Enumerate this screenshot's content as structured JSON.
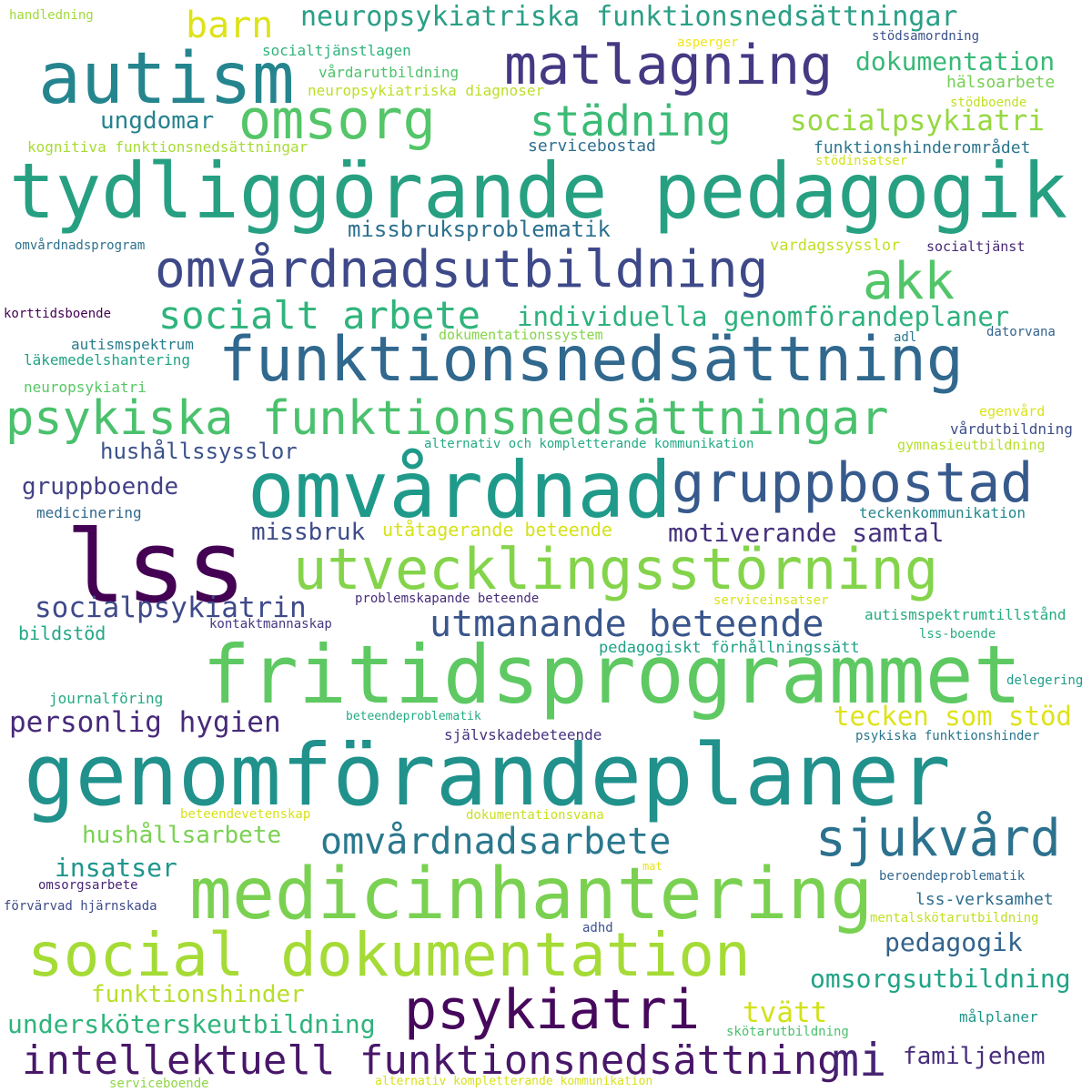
{
  "words": [
    {
      "text": "tydliggörande pedagogik",
      "color": "#27a082"
    },
    {
      "text": "genomförandeplaner",
      "color": "#21918c"
    },
    {
      "text": "fritidsprogrammet",
      "color": "#5ec962"
    },
    {
      "text": "omvårdnad",
      "color": "#1f9a8a"
    },
    {
      "text": "lss",
      "color": "#440154"
    },
    {
      "text": "medicinhantering",
      "color": "#7ad151"
    },
    {
      "text": "social dokumentation",
      "color": "#a5db36"
    },
    {
      "text": "autism",
      "color": "#25858e"
    },
    {
      "text": "funktionsnedsättning",
      "color": "#31688e"
    },
    {
      "text": "omvårdnadsutbildning",
      "color": "#3e4989"
    },
    {
      "text": "utvecklingsstörning",
      "color": "#84d44b"
    },
    {
      "text": "matlagning",
      "color": "#443983"
    },
    {
      "text": "psykiska funktionsnedsättningar",
      "color": "#4ac16d"
    },
    {
      "text": "gruppbostad",
      "color": "#375a8c"
    },
    {
      "text": "psykiatri",
      "color": "#46085c"
    },
    {
      "text": "intellektuell funktionsnedsättning",
      "color": "#481769"
    },
    {
      "text": "omsorg",
      "color": "#54c568"
    },
    {
      "text": "städning",
      "color": "#3bbb75"
    },
    {
      "text": "akk",
      "color": "#52c569"
    },
    {
      "text": "sjukvård",
      "color": "#2c728e"
    },
    {
      "text": "utmanande beteende",
      "color": "#39568c"
    },
    {
      "text": "socialt arbete",
      "color": "#2fb47c"
    },
    {
      "text": "mi",
      "color": "#482475"
    },
    {
      "text": "omvårdnadsarbete",
      "color": "#2a788e"
    },
    {
      "text": "barn",
      "color": "#dde318"
    },
    {
      "text": "neuropsykiatriska funktionsnedsättningar",
      "color": "#2a9f86"
    },
    {
      "text": "dokumentation",
      "color": "#38b977"
    },
    {
      "text": "socialpsykiatri",
      "color": "#95d840"
    },
    {
      "text": "individuella genomförandeplaner",
      "color": "#2db27d"
    },
    {
      "text": "socialpsykiatrin",
      "color": "#3f4a8a"
    },
    {
      "text": "personlig hygien",
      "color": "#472a7a"
    },
    {
      "text": "tecken som stöd",
      "color": "#dde318"
    },
    {
      "text": "motiverande samtal",
      "color": "#46327e"
    },
    {
      "text": "insatser",
      "color": "#1f968b"
    },
    {
      "text": "hushållsarbete",
      "color": "#7ad151"
    },
    {
      "text": "funktionshinder",
      "color": "#b8de29"
    },
    {
      "text": "undersköterskeutbildning",
      "color": "#2fb47c"
    },
    {
      "text": "tvätt",
      "color": "#d2e21b"
    },
    {
      "text": "pedagogik",
      "color": "#33638d"
    },
    {
      "text": "omsorgsutbildning",
      "color": "#20a386"
    },
    {
      "text": "familjehem",
      "color": "#472d7b"
    },
    {
      "text": "ungdomar",
      "color": "#26828e"
    },
    {
      "text": "missbruksproblematik",
      "color": "#2d708e"
    },
    {
      "text": "hushållssysslor",
      "color": "#3b528b"
    },
    {
      "text": "gruppboende",
      "color": "#424086"
    },
    {
      "text": "missbruk",
      "color": "#3e4c8a"
    },
    {
      "text": "utåtagerande beteende",
      "color": "#d5e21a"
    },
    {
      "text": "funktionshinderområdet",
      "color": "#2b758e"
    },
    {
      "text": "hälsoarbete",
      "color": "#75d054"
    },
    {
      "text": "servicebostad",
      "color": "#2e6e8e"
    },
    {
      "text": "vardagssysslor",
      "color": "#c2df23"
    },
    {
      "text": "socialtjänst",
      "color": "#482878"
    },
    {
      "text": "handledning",
      "color": "#a0da39"
    },
    {
      "text": "socialtjänstlagen",
      "color": "#2fb47c"
    },
    {
      "text": "vårdarutbildning",
      "color": "#4ec36b"
    },
    {
      "text": "neuropsykiatriska diagnoser",
      "color": "#bddf26"
    },
    {
      "text": "kognitiva funktionsnedsättningar",
      "color": "#a8db34"
    },
    {
      "text": "asperger",
      "color": "#f1e51d"
    },
    {
      "text": "stödsamordning",
      "color": "#3b518b"
    },
    {
      "text": "stödboende",
      "color": "#c2df23"
    },
    {
      "text": "stödinsatser",
      "color": "#d2e21b"
    },
    {
      "text": "omvårdnadsprogram",
      "color": "#2d718e"
    },
    {
      "text": "korttidsboende",
      "color": "#440154"
    },
    {
      "text": "autismspektrum",
      "color": "#287c8e"
    },
    {
      "text": "läkemedelshantering",
      "color": "#20a386"
    },
    {
      "text": "neuropsykiatri",
      "color": "#58c765"
    },
    {
      "text": "dokumentationssystem",
      "color": "#86d549"
    },
    {
      "text": "adl",
      "color": "#2a768e"
    },
    {
      "text": "datorvana",
      "color": "#33638d"
    },
    {
      "text": "egenvård",
      "color": "#dae319"
    },
    {
      "text": "vårdutbildning",
      "color": "#3d4d8a"
    },
    {
      "text": "alternativ och kompletterande kommunikation",
      "color": "#24aa83"
    },
    {
      "text": "gymnasieutbildning",
      "color": "#b5de2b"
    },
    {
      "text": "medicinering",
      "color": "#31688e"
    },
    {
      "text": "teckenkommunikation",
      "color": "#23888e"
    },
    {
      "text": "problemskapande beteende",
      "color": "#472c7a"
    },
    {
      "text": "serviceinsatser",
      "color": "#d8e219"
    },
    {
      "text": "autismspektrumtillstånd",
      "color": "#25ab82"
    },
    {
      "text": "bildstöd",
      "color": "#22a785"
    },
    {
      "text": "kontaktmannaskap",
      "color": "#453781"
    },
    {
      "text": "lss-boende",
      "color": "#29af7f"
    },
    {
      "text": "pedagogiskt förhållningssätt",
      "color": "#1fa188"
    },
    {
      "text": "delegering",
      "color": "#1f9e89"
    },
    {
      "text": "journalföring",
      "color": "#23a983"
    },
    {
      "text": "beteendeproblematik",
      "color": "#24aa83"
    },
    {
      "text": "självskadebeteende",
      "color": "#46327e"
    },
    {
      "text": "psykiska funktionshinder",
      "color": "#2a768e"
    },
    {
      "text": "beteendevetenskap",
      "color": "#d8e219"
    },
    {
      "text": "dokumentationsvana",
      "color": "#c8e020"
    },
    {
      "text": "mat",
      "color": "#e5e419"
    },
    {
      "text": "omsorgsarbete",
      "color": "#482576"
    },
    {
      "text": "beroendeproblematik",
      "color": "#31668e"
    },
    {
      "text": "förvärvad hjärnskada",
      "color": "#3e4c8a"
    },
    {
      "text": "lss-verksamhet",
      "color": "#2e6d8e"
    },
    {
      "text": "mentalskötarutbildning",
      "color": "#c0df25"
    },
    {
      "text": "adhd",
      "color": "#3b528b"
    },
    {
      "text": "målplaner",
      "color": "#1f968b"
    },
    {
      "text": "skötarutbildning",
      "color": "#4ac16d"
    },
    {
      "text": "serviceboende",
      "color": "#8ed645"
    },
    {
      "text": "alternativ kompletterande kommunikation",
      "color": "#d8e219"
    }
  ]
}
